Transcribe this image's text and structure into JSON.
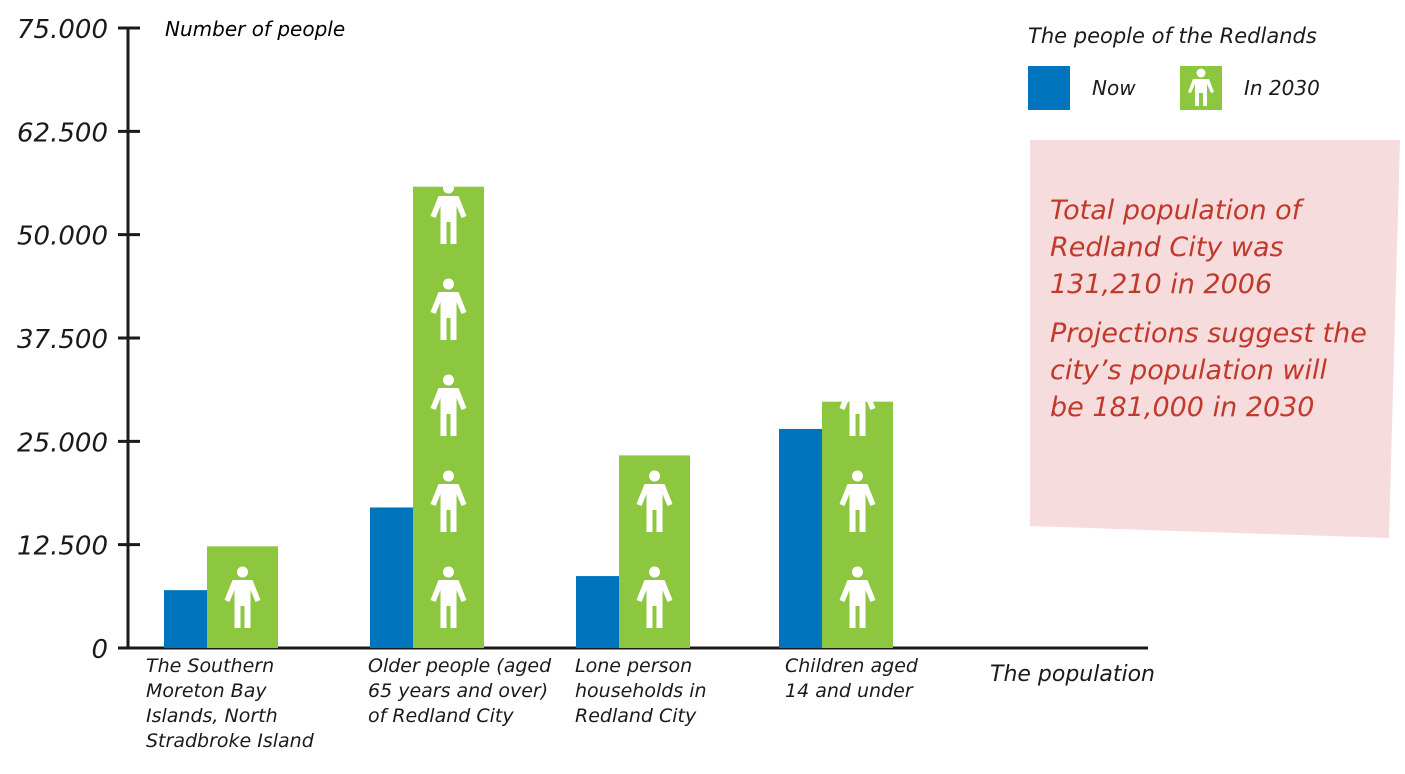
{
  "chart_data": {
    "type": "bar",
    "title": "The people of the Redlands",
    "ylabel": "Number of people",
    "xlabel": "The population",
    "ylim": [
      0,
      75000
    ],
    "yticks": [
      0,
      12500,
      25000,
      37500,
      50000,
      62500,
      75000
    ],
    "ytick_labels": [
      "0",
      "12.500",
      "25.000",
      "37.500",
      "50.000",
      "62.500",
      "75.000"
    ],
    "categories": [
      "The Southern Moreton Bay Islands, North Stradbroke Island",
      "Older people (aged 65 years and over) of Redland City",
      "Lone person households in Redland City",
      "Children aged 14 and under"
    ],
    "series": [
      {
        "name": "Now",
        "values": [
          7000,
          17000,
          8700,
          26500
        ]
      },
      {
        "name": "In 2030",
        "values": [
          12300,
          55800,
          23300,
          29800
        ]
      }
    ],
    "legend_position": "top-right",
    "grid": false
  },
  "colors": {
    "now": "#0075be",
    "in_2030": "#8dc63f",
    "note_text": "#c0392b",
    "note_bg": "#f6dcdc"
  },
  "icons": {
    "in_2030": "person-icon"
  },
  "category_label_lines": [
    [
      "The Southern",
      "Moreton Bay",
      "Islands, North",
      "Stradbroke Island"
    ],
    [
      "Older people (aged",
      "65 years and over)",
      "of Redland City"
    ],
    [
      "Lone person",
      "households in",
      "Redland City"
    ],
    [
      "Children aged",
      "14 and under"
    ]
  ],
  "note": {
    "line1": "Total population of",
    "line2": "Redland City was",
    "line3": "131,210 in 2006",
    "line4": "Projections suggest the",
    "line5": "city’s population will",
    "line6": "be 181,000 in 2030"
  }
}
